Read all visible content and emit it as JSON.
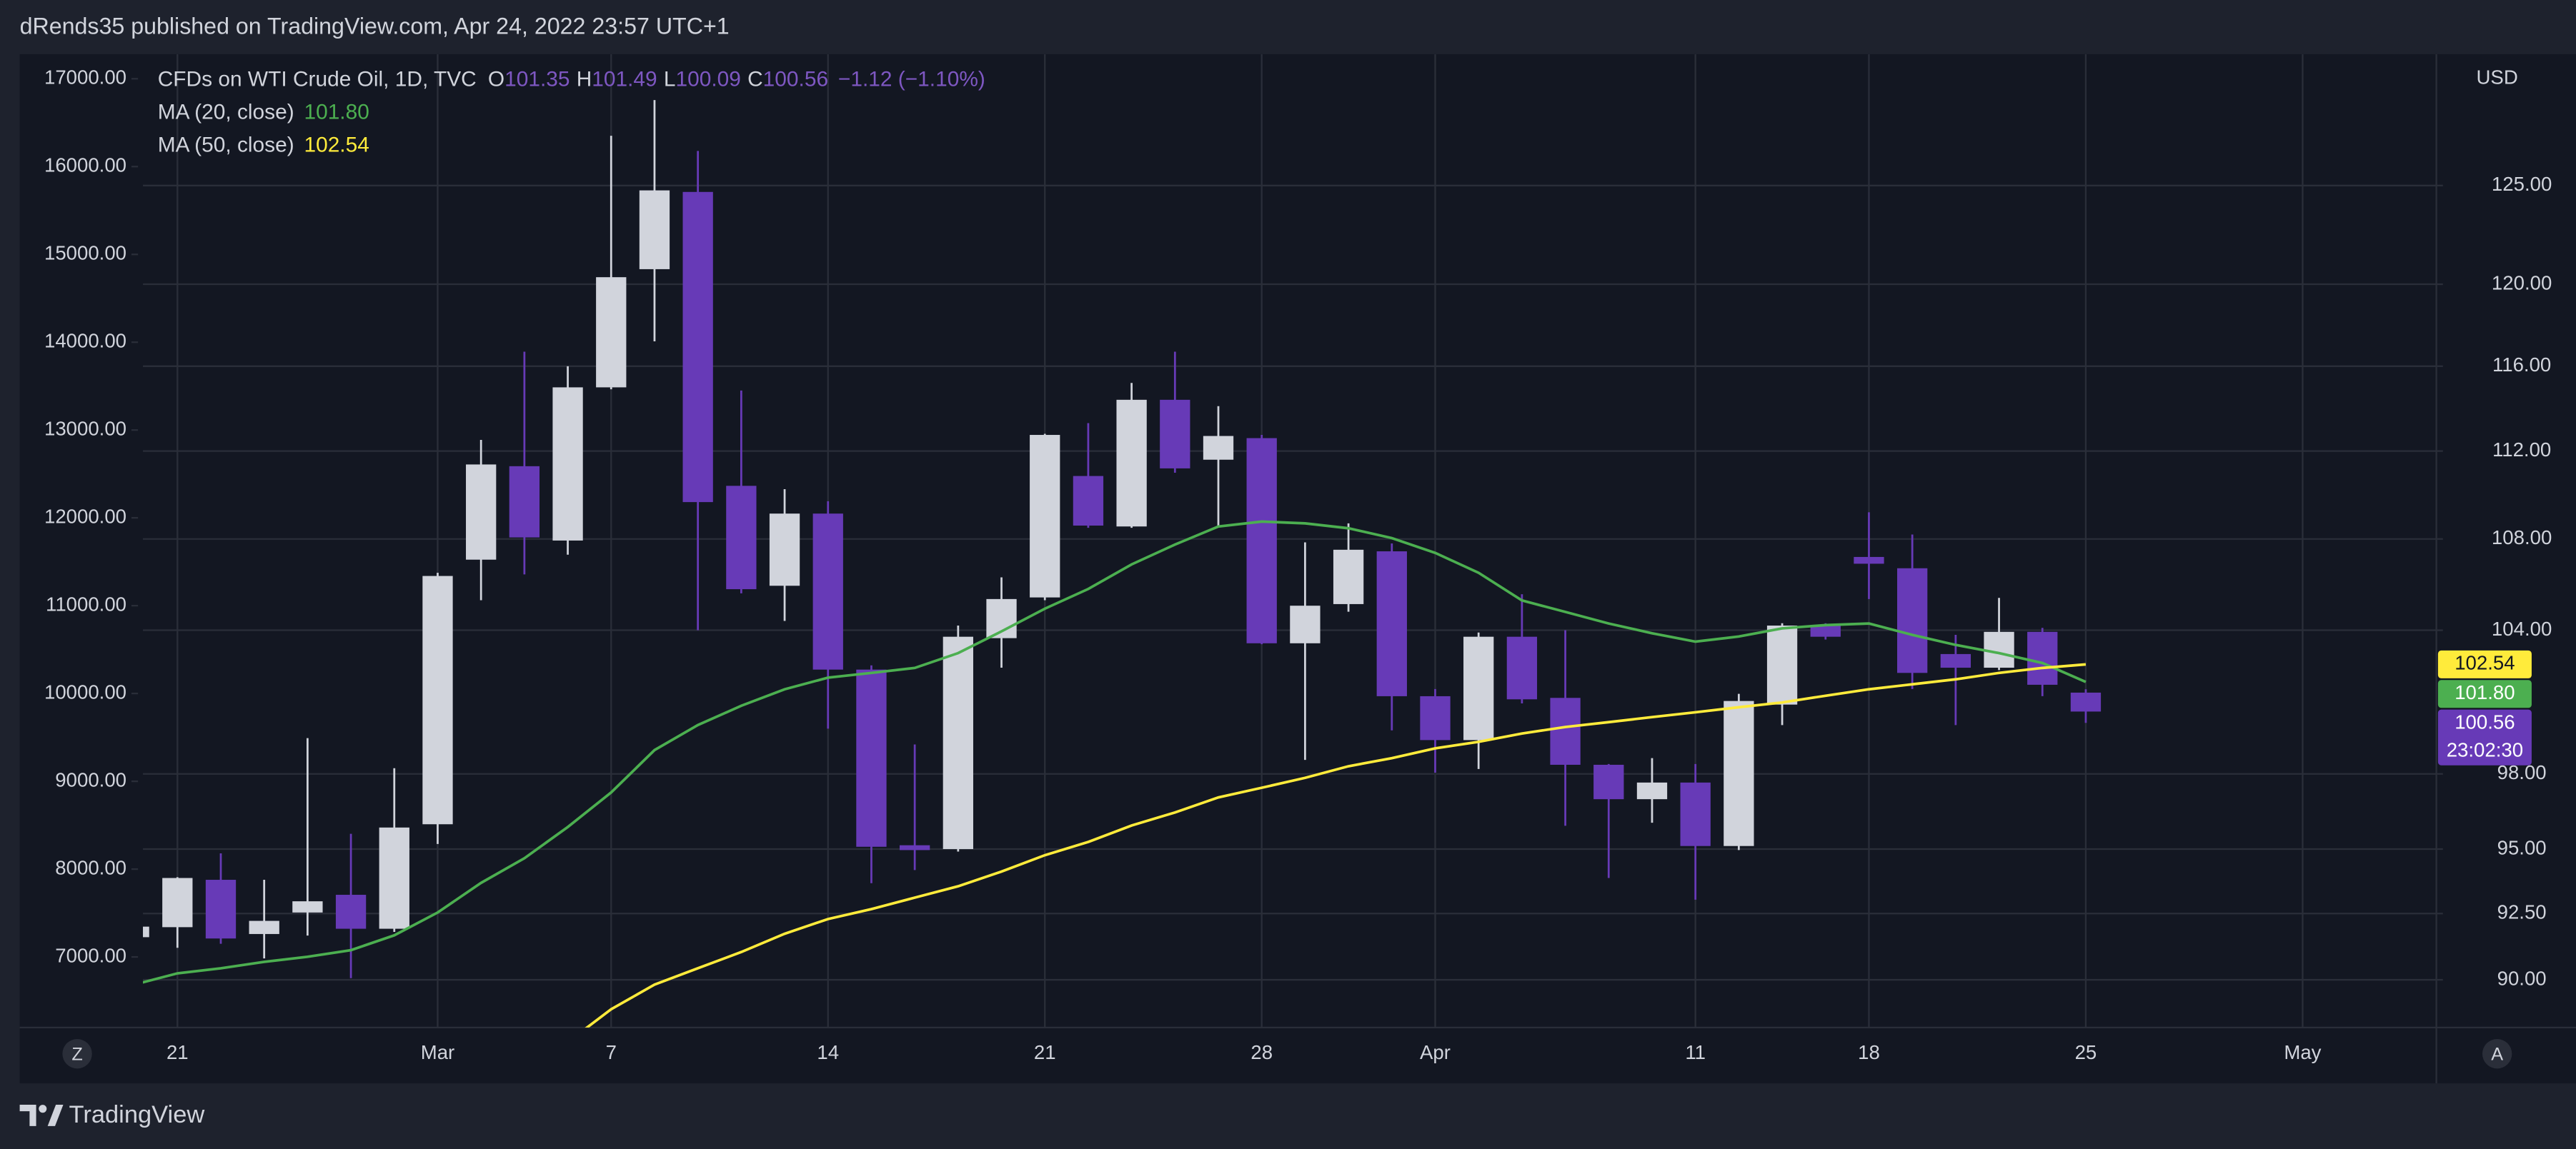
{
  "header": {
    "published": "dRends35 published on TradingView.com, Apr 24, 2022 23:57 UTC+1"
  },
  "chart_data": {
    "type": "candlestick",
    "title": "CFDs on WTI Crude Oil, 1D, TVC",
    "currency": "USD",
    "legend_keys": {
      "open": "O",
      "high": "H",
      "low": "L",
      "close": "C"
    },
    "change": "−1.12 (−1.10%)",
    "countdown": "23:02:30",
    "categories": [
      null,
      "21",
      null,
      null,
      null,
      null,
      null,
      "Mar",
      null,
      null,
      null,
      "7",
      null,
      null,
      null,
      null,
      "14",
      null,
      null,
      null,
      null,
      "21",
      null,
      null,
      null,
      null,
      "28",
      null,
      null,
      null,
      "Apr",
      null,
      null,
      null,
      null,
      null,
      "11",
      null,
      null,
      null,
      "18",
      null,
      null,
      null,
      null,
      "25",
      null,
      null,
      null,
      null,
      "May",
      null,
      null,
      null
    ],
    "open": [
      91.6,
      91.98,
      93.8,
      91.72,
      92.54,
      93.22,
      91.92,
      95.98,
      107.08,
      111.3,
      107.93,
      114.99,
      120.75,
      124.67,
      110.4,
      105.93,
      109.14,
      102.32,
      95.15,
      95.0,
      103.66,
      105.42,
      110.85,
      108.56,
      114.4,
      111.6,
      112.6,
      103.44,
      105.13,
      107.45,
      101.2,
      99.38,
      103.72,
      101.13,
      98.37,
      96.98,
      97.65,
      95.12,
      100.85,
      104.2,
      107.2,
      106.7,
      102.98,
      102.4,
      103.93,
      101.35,
      null,
      null,
      null,
      null,
      null,
      null,
      null,
      null
    ],
    "high": [
      92.1,
      93.9,
      94.83,
      93.8,
      99.46,
      95.6,
      98.23,
      106.5,
      112.52,
      116.7,
      116.0,
      127.6,
      129.5,
      126.8,
      114.84,
      110.25,
      109.7,
      102.5,
      99.2,
      104.2,
      106.3,
      112.8,
      113.3,
      115.2,
      116.7,
      114.1,
      112.75,
      107.85,
      108.7,
      107.8,
      101.5,
      103.9,
      105.56,
      104.0,
      98.4,
      98.64,
      98.4,
      101.3,
      104.3,
      104.3,
      109.2,
      108.2,
      103.8,
      105.4,
      104.1,
      101.49,
      null,
      null,
      null,
      null,
      null,
      null,
      null,
      null
    ],
    "low": [
      91.5,
      91.2,
      91.35,
      90.8,
      91.66,
      90.06,
      91.8,
      95.2,
      105.3,
      106.43,
      107.3,
      114.9,
      117.2,
      104.0,
      105.6,
      104.4,
      99.85,
      93.67,
      94.18,
      94.9,
      102.4,
      105.3,
      108.5,
      108.5,
      111.0,
      108.56,
      103.4,
      98.57,
      104.8,
      99.78,
      98.05,
      98.2,
      100.9,
      95.92,
      93.87,
      96.04,
      93.03,
      94.96,
      100.0,
      103.6,
      105.35,
      101.5,
      100.0,
      102.3,
      101.2,
      100.09,
      null,
      null,
      null,
      null,
      null,
      null,
      null,
      null
    ],
    "close": [
      92.0,
      93.87,
      91.55,
      92.22,
      92.97,
      91.92,
      95.85,
      106.36,
      111.38,
      108.07,
      114.99,
      120.35,
      124.75,
      109.66,
      105.78,
      109.14,
      102.32,
      95.09,
      94.96,
      103.72,
      105.35,
      112.75,
      108.6,
      114.4,
      111.2,
      112.7,
      103.44,
      105.06,
      107.52,
      101.2,
      99.38,
      103.72,
      101.07,
      98.37,
      96.98,
      97.65,
      95.12,
      101.0,
      104.2,
      103.72,
      106.9,
      102.18,
      102.4,
      103.93,
      101.68,
      100.56,
      null,
      null,
      null,
      null,
      null,
      null,
      null,
      null
    ],
    "up_color": "#d1d4dc",
    "down_color": "#673ab7",
    "series": [
      {
        "name": "MA (20, close)",
        "color": "#4caf50",
        "values": [
          89.82,
          90.24,
          90.43,
          90.67,
          90.86,
          91.11,
          91.67,
          92.54,
          93.68,
          94.64,
          95.87,
          97.25,
          98.97,
          100.0,
          100.8,
          101.49,
          101.98,
          102.18,
          102.39,
          103.02,
          103.95,
          104.93,
          105.79,
          106.87,
          107.75,
          108.56,
          108.78,
          108.7,
          108.48,
          108.04,
          107.38,
          106.5,
          105.29,
          104.79,
          104.29,
          103.87,
          103.51,
          103.73,
          104.08,
          104.22,
          104.29,
          103.8,
          103.37,
          103.02,
          102.6,
          101.8,
          null,
          null,
          null,
          null,
          null,
          null,
          null,
          null
        ],
        "value_labels": [
          null,
          null,
          null,
          null,
          null,
          null,
          null,
          null,
          null,
          null,
          null,
          null,
          null,
          null,
          null,
          null,
          null,
          null,
          null,
          null,
          null,
          null,
          null,
          null,
          null,
          null,
          null,
          null,
          null,
          null,
          null,
          null,
          null,
          null,
          null,
          null,
          null,
          null,
          null,
          null,
          null,
          null,
          null,
          null,
          null,
          "101.80",
          null,
          null,
          null,
          null,
          null,
          null,
          null,
          null
        ]
      },
      {
        "name": "MA (50, close)",
        "color": "#ffeb3b",
        "values": [
          null,
          null,
          null,
          null,
          null,
          null,
          null,
          null,
          null,
          null,
          87.71,
          88.91,
          89.82,
          90.43,
          91.04,
          91.73,
          92.29,
          92.67,
          93.11,
          93.55,
          94.12,
          94.76,
          95.28,
          95.93,
          96.45,
          97.05,
          97.44,
          97.84,
          98.31,
          98.64,
          99.04,
          99.31,
          99.65,
          99.92,
          100.12,
          100.33,
          100.53,
          100.74,
          100.94,
          101.22,
          101.49,
          101.7,
          101.91,
          102.18,
          102.39,
          102.54,
          null,
          null,
          null,
          null,
          null,
          null,
          null,
          null
        ],
        "value_labels": [
          null,
          null,
          null,
          null,
          null,
          null,
          null,
          null,
          null,
          null,
          null,
          null,
          null,
          null,
          null,
          null,
          null,
          null,
          null,
          null,
          null,
          null,
          null,
          null,
          null,
          null,
          null,
          null,
          null,
          null,
          null,
          null,
          null,
          null,
          null,
          null,
          null,
          null,
          null,
          null,
          null,
          null,
          null,
          null,
          null,
          "102.54",
          null,
          null,
          null,
          null,
          null,
          null,
          null,
          null
        ]
      }
    ],
    "log_scale": true,
    "ylim": [
      88.24,
      131.98
    ],
    "yticks": [
      {
        "value": 90,
        "label": "90.00"
      },
      {
        "value": 92.5,
        "label": "92.50"
      },
      {
        "value": 95,
        "label": "95.00"
      },
      {
        "value": 98,
        "label": "98.00"
      },
      {
        "value": 104,
        "label": "104.00"
      },
      {
        "value": 108,
        "label": "108.00"
      },
      {
        "value": 112,
        "label": "112.00"
      },
      {
        "value": 116,
        "label": "116.00"
      },
      {
        "value": 120,
        "label": "120.00"
      },
      {
        "value": 125,
        "label": "125.00"
      }
    ],
    "y2lim": [
      6196,
      17280
    ],
    "y2ticks": [
      {
        "value": 7000,
        "label": "7000.00"
      },
      {
        "value": 8000,
        "label": "8000.00"
      },
      {
        "value": 9000,
        "label": "9000.00"
      },
      {
        "value": 10000,
        "label": "10000.00"
      },
      {
        "value": 11000,
        "label": "11000.00"
      },
      {
        "value": 12000,
        "label": "12000.00"
      },
      {
        "value": 13000,
        "label": "13000.00"
      },
      {
        "value": 14000,
        "label": "14000.00"
      },
      {
        "value": 15000,
        "label": "15000.00"
      },
      {
        "value": 16000,
        "label": "16000.00"
      },
      {
        "value": 17000,
        "label": "17000.00"
      }
    ],
    "grid": true
  },
  "buttons": {
    "left": "Z",
    "right": "A"
  },
  "footer": {
    "brand": "TradingView"
  }
}
